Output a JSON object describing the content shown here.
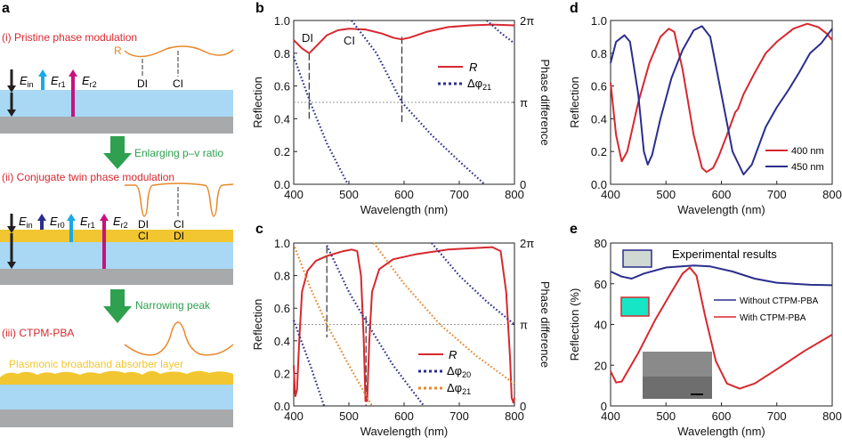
{
  "panel_a": {
    "label": "a",
    "step1": "(i) Pristine phase modulation",
    "step2": "(ii) Conjugate twin phase modulation",
    "step3": "(iii) CTPM-PBA",
    "arrow1": "Enlarging p–v ratio",
    "arrow2": "Narrowing peak",
    "R": "R",
    "DI": "DI",
    "CI": "CI",
    "E": "E",
    "in": "in",
    "r0": "r0",
    "r1": "r1",
    "r2": "r2",
    "absorber": "Plasmonic broadband absorber layer",
    "colors": {
      "substrate": "#a8a9ab",
      "dielectric": "#a9d8f5",
      "metal": "#f2c630",
      "curve": "#e8872a",
      "green": "#2ea04f",
      "title": "#d7282f",
      "Ein": "#231f20",
      "Er0": "#2b2e8c",
      "Er1": "#19a9e6",
      "Er2": "#c8117e"
    }
  },
  "chart_data": [
    {
      "panel": "b",
      "type": "line",
      "xlabel": "Wavelength (nm)",
      "ylabel": "Reflection",
      "y2label": "Phase difference",
      "xlim": [
        400,
        800
      ],
      "ylim": [
        0,
        1
      ],
      "y2lim_pi": [
        0,
        2
      ],
      "xticks": [
        "400",
        "500",
        "600",
        "700",
        "800"
      ],
      "yticks": [
        "0.0",
        "0.2",
        "0.4",
        "0.6",
        "0.8",
        "1.0"
      ],
      "y2ticks": [
        "0",
        "π",
        "2π"
      ],
      "annotations": [
        "DI",
        "CI"
      ],
      "legend": [
        "R",
        "Δφ",
        "21"
      ],
      "series": [
        {
          "name": "R",
          "color": "#d7282f",
          "axis": "left",
          "points": [
            [
              400,
              0.88
            ],
            [
              415,
              0.83
            ],
            [
              428,
              0.8
            ],
            [
              440,
              0.84
            ],
            [
              460,
              0.91
            ],
            [
              480,
              0.94
            ],
            [
              500,
              0.95
            ],
            [
              530,
              0.945
            ],
            [
              560,
              0.92
            ],
            [
              580,
              0.895
            ],
            [
              595,
              0.885
            ],
            [
              610,
              0.895
            ],
            [
              640,
              0.93
            ],
            [
              680,
              0.96
            ],
            [
              720,
              0.97
            ],
            [
              760,
              0.975
            ],
            [
              800,
              0.97
            ]
          ]
        },
        {
          "name": "Δφ21",
          "color": "#2b2e8c",
          "axis": "right_pi",
          "segments": [
            [
              [
                400,
                1.56
              ],
              [
                430,
                1.0
              ],
              [
                460,
                0.5
              ],
              [
                498,
                0
              ]
            ],
            [
              [
                505,
                2
              ],
              [
                550,
                1.6
              ],
              [
                596,
                1.0
              ],
              [
                650,
                0.6
              ],
              [
                700,
                0.28
              ],
              [
                746,
                0
              ]
            ],
            [
              [
                750,
                2
              ],
              [
                775,
                1.85
              ],
              [
                800,
                1.72
              ]
            ]
          ]
        }
      ],
      "markers": [
        [
          428,
          0.8,
          0.4
        ],
        [
          596,
          0.9,
          0.38
        ]
      ]
    },
    {
      "panel": "c",
      "type": "line",
      "xlabel": "Wavelength (nm)",
      "ylabel": "Reflection",
      "y2label": "Phase difference",
      "xlim": [
        400,
        800
      ],
      "ylim": [
        0,
        1
      ],
      "y2lim_pi": [
        0,
        2
      ],
      "xticks": [
        "400",
        "500",
        "600",
        "700",
        "800"
      ],
      "yticks": [
        "0.0",
        "0.2",
        "0.4",
        "0.6",
        "0.8",
        "1.0"
      ],
      "y2ticks": [
        "0",
        "π",
        "2π"
      ],
      "legend": [
        "R",
        "Δφ",
        "20",
        "21"
      ],
      "series": [
        {
          "name": "R",
          "color": "#d7282f",
          "axis": "left",
          "points": [
            [
              400,
              0.25
            ],
            [
              402,
              0.1
            ],
            [
              403,
              0.06
            ],
            [
              406,
              0.1
            ],
            [
              410,
              0.4
            ],
            [
              415,
              0.7
            ],
            [
              425,
              0.83
            ],
            [
              440,
              0.89
            ],
            [
              460,
              0.92
            ],
            [
              490,
              0.95
            ],
            [
              505,
              0.96
            ],
            [
              515,
              0.95
            ],
            [
              522,
              0.8
            ],
            [
              527,
              0.4
            ],
            [
              530,
              0.03
            ],
            [
              533,
              0.03
            ],
            [
              537,
              0.4
            ],
            [
              542,
              0.7
            ],
            [
              555,
              0.84
            ],
            [
              580,
              0.9
            ],
            [
              620,
              0.93
            ],
            [
              680,
              0.96
            ],
            [
              760,
              0.975
            ],
            [
              775,
              0.95
            ],
            [
              785,
              0.7
            ],
            [
              792,
              0.3
            ],
            [
              795,
              0.05
            ],
            [
              798,
              0.02
            ],
            [
              800,
              0.05
            ]
          ]
        },
        {
          "name": "Δφ20",
          "color": "#2b2e8c",
          "axis": "right_pi",
          "segments": [
            [
              [
                400,
                1.05
              ],
              [
                430,
                0.5
              ],
              [
                455,
                0
              ]
            ],
            [
              [
                460,
                1.97
              ],
              [
                500,
                1.4
              ],
              [
                530,
                1.05
              ],
              [
                580,
                0.5
              ],
              [
                636,
                0
              ]
            ],
            [
              [
                650,
                2
              ],
              [
                700,
                1.6
              ],
              [
                750,
                1.28
              ],
              [
                800,
                1.0
              ]
            ]
          ]
        },
        {
          "name": "Δφ21",
          "color": "#e8872a",
          "axis": "right_pi",
          "segments": [
            [
              [
                402,
                1.95
              ],
              [
                430,
                1.45
              ],
              [
                460,
                1.0
              ],
              [
                500,
                0.5
              ],
              [
                542,
                0
              ]
            ],
            [
              [
                545,
                2
              ],
              [
                600,
                1.5
              ],
              [
                665,
                1.0
              ],
              [
                730,
                0.62
              ],
              [
                800,
                0.27
              ]
            ]
          ]
        }
      ],
      "markers": [
        [
          460,
          0.98,
          0.42
        ],
        [
          531,
          0.55,
          0.0
        ]
      ]
    },
    {
      "panel": "d",
      "type": "line",
      "xlabel": "Wavelength (nm)",
      "ylabel": "Reflection",
      "xlim": [
        400,
        800
      ],
      "ylim": [
        0,
        1
      ],
      "xticks": [
        "400",
        "500",
        "600",
        "700",
        "800"
      ],
      "yticks": [
        "0.0",
        "0.2",
        "0.4",
        "0.6",
        "0.8",
        "1.0"
      ],
      "series": [
        {
          "name": "400 nm",
          "color": "#d7282f",
          "points": [
            [
              400,
              0.62
            ],
            [
              410,
              0.3
            ],
            [
              420,
              0.14
            ],
            [
              430,
              0.2
            ],
            [
              450,
              0.5
            ],
            [
              470,
              0.74
            ],
            [
              490,
              0.9
            ],
            [
              505,
              0.95
            ],
            [
              515,
              0.93
            ],
            [
              530,
              0.7
            ],
            [
              550,
              0.3
            ],
            [
              565,
              0.1
            ],
            [
              573,
              0.075
            ],
            [
              585,
              0.1
            ],
            [
              595,
              0.17
            ],
            [
              610,
              0.3
            ],
            [
              625,
              0.44
            ],
            [
              630,
              0.46
            ],
            [
              640,
              0.55
            ],
            [
              660,
              0.68
            ],
            [
              680,
              0.8
            ],
            [
              700,
              0.87
            ],
            [
              730,
              0.95
            ],
            [
              755,
              0.98
            ],
            [
              775,
              0.96
            ],
            [
              790,
              0.92
            ],
            [
              800,
              0.88
            ]
          ]
        },
        {
          "name": "450 nm",
          "color": "#2b2e8c",
          "points": [
            [
              400,
              0.74
            ],
            [
              410,
              0.87
            ],
            [
              425,
              0.91
            ],
            [
              435,
              0.87
            ],
            [
              450,
              0.55
            ],
            [
              460,
              0.2
            ],
            [
              467,
              0.12
            ],
            [
              475,
              0.18
            ],
            [
              490,
              0.4
            ],
            [
              510,
              0.65
            ],
            [
              530,
              0.82
            ],
            [
              550,
              0.94
            ],
            [
              565,
              0.965
            ],
            [
              580,
              0.9
            ],
            [
              600,
              0.55
            ],
            [
              620,
              0.2
            ],
            [
              640,
              0.06
            ],
            [
              655,
              0.12
            ],
            [
              680,
              0.35
            ],
            [
              700,
              0.47
            ],
            [
              720,
              0.57
            ],
            [
              740,
              0.68
            ],
            [
              760,
              0.8
            ],
            [
              780,
              0.86
            ],
            [
              800,
              0.95
            ]
          ]
        }
      ]
    },
    {
      "panel": "e",
      "type": "line",
      "title": "Experimental results",
      "xlabel": "Wavelength (nm)",
      "ylabel": "Reflection (%)",
      "xlim": [
        400,
        800
      ],
      "ylim": [
        0,
        80
      ],
      "xticks": [
        "400",
        "500",
        "600",
        "700",
        "800"
      ],
      "yticks": [
        "0",
        "20",
        "40",
        "60",
        "80"
      ],
      "series": [
        {
          "name": "Without CTPM-PBA",
          "color": "#2b2e8c",
          "points": [
            [
              400,
              66
            ],
            [
              420,
              63.5
            ],
            [
              438,
              62.5
            ],
            [
              460,
              65
            ],
            [
              500,
              68
            ],
            [
              550,
              69
            ],
            [
              580,
              68.5
            ],
            [
              620,
              66
            ],
            [
              660,
              62.5
            ],
            [
              700,
              60.5
            ],
            [
              760,
              59.5
            ],
            [
              800,
              59.3
            ]
          ]
        },
        {
          "name": "With CTPM-PBA",
          "color": "#d7282f",
          "points": [
            [
              400,
              17
            ],
            [
              410,
              11.5
            ],
            [
              420,
              12
            ],
            [
              450,
              26
            ],
            [
              480,
              42
            ],
            [
              510,
              56
            ],
            [
              530,
              65
            ],
            [
              543,
              68
            ],
            [
              555,
              64
            ],
            [
              570,
              45
            ],
            [
              590,
              22
            ],
            [
              610,
              11
            ],
            [
              633,
              8.5
            ],
            [
              660,
              11
            ],
            [
              700,
              18
            ],
            [
              750,
              27
            ],
            [
              800,
              35
            ]
          ]
        }
      ]
    }
  ]
}
